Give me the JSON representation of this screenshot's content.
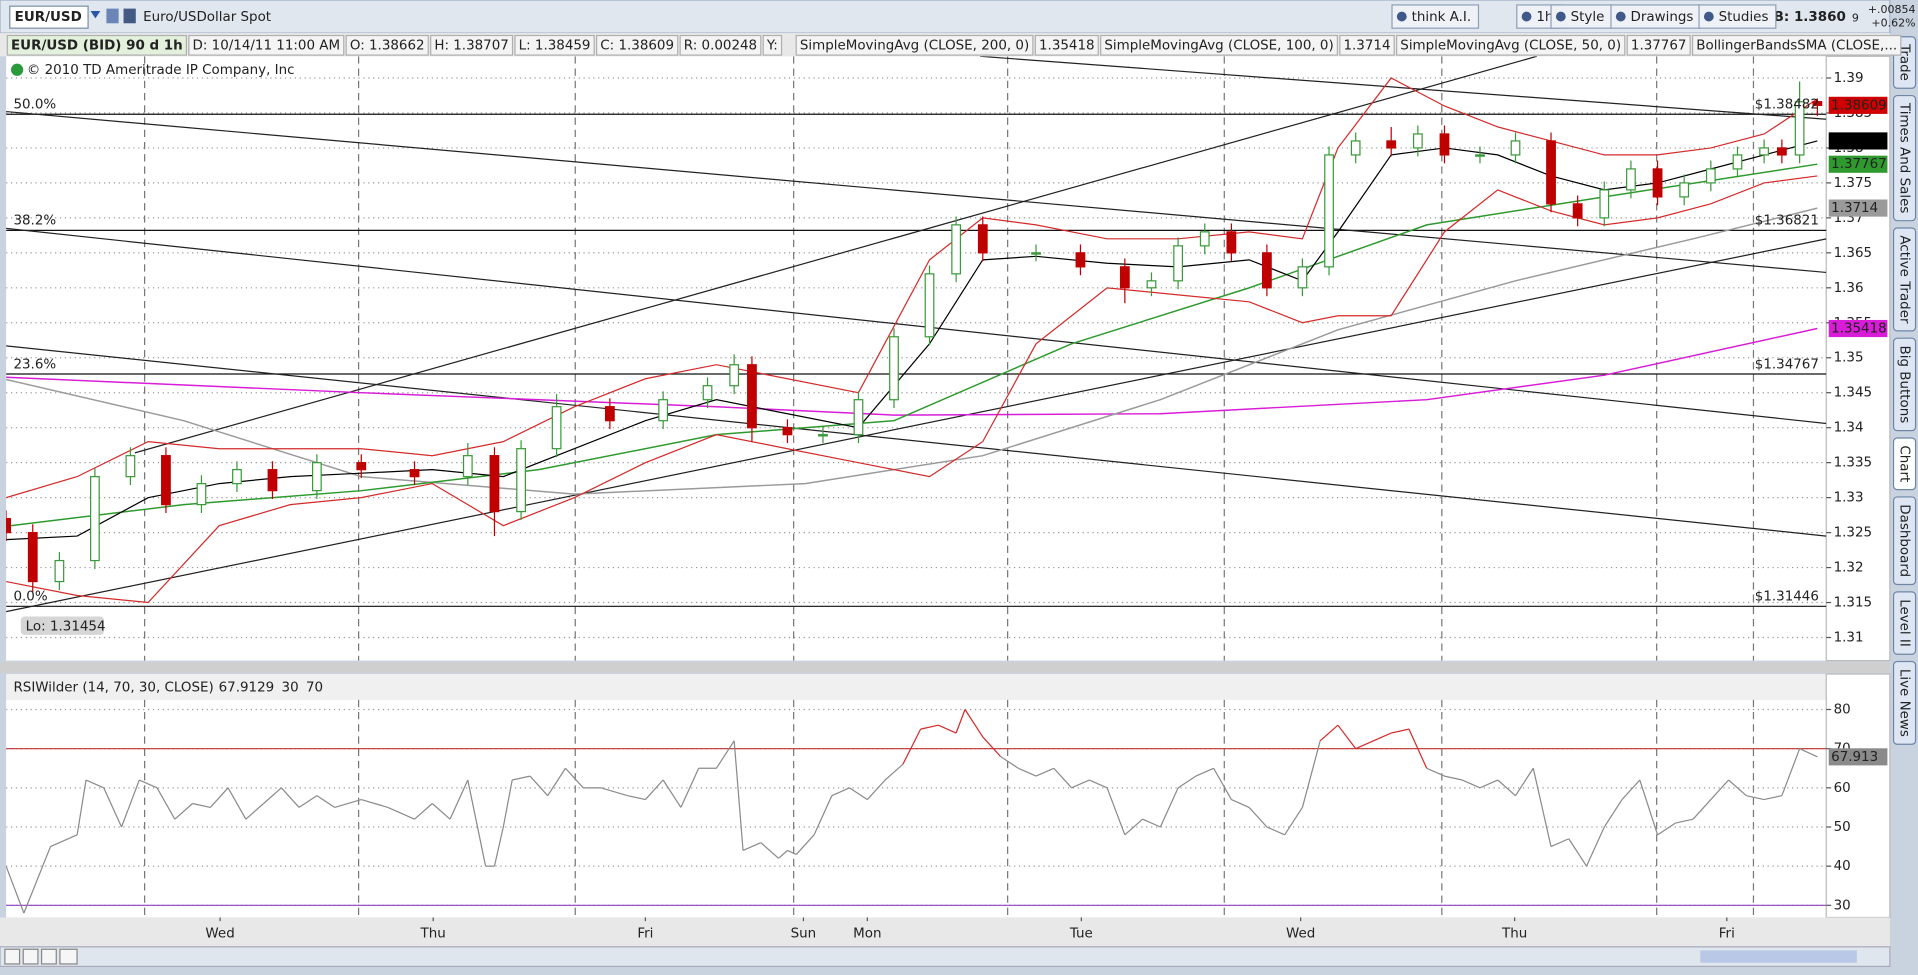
{
  "toolbar": {
    "symbol": "EUR/USD",
    "description": "Euro/USDollar Spot",
    "buttons": [
      "think A.I.",
      "1h",
      "Style",
      "Drawings",
      "Studies"
    ],
    "bid": "B: 1.3860",
    "bid_suffix": "9",
    "change": "+.00854",
    "change_pct": "+0.62%"
  },
  "side_tabs": [
    "Trade",
    "Times And Sales",
    "Active Trader",
    "Big Buttons",
    "Chart",
    "Dashboard",
    "Level II",
    "Live News"
  ],
  "chart_data": [
    {
      "type": "candlestick",
      "info": [
        "EUR/USD (BID) 90 d 1h",
        "D: 10/14/11 11:00 AM",
        "O: 1.38662",
        "H: 1.38707",
        "L: 1.38459",
        "C: 1.38609",
        "R: 0.00248",
        "Y:"
      ],
      "copyright": "© 2010 TD Ameritrade IP Company, Inc",
      "low_label": "Lo: 1.31454",
      "last_price": 1.38609,
      "xlim": [
        0,
        205
      ],
      "ylim": [
        1.3067,
        1.3931
      ],
      "yticks": [
        1.31,
        1.315,
        1.32,
        1.325,
        1.33,
        1.335,
        1.34,
        1.345,
        1.35,
        1.355,
        1.36,
        1.365,
        1.37,
        1.375,
        1.38,
        1.385,
        1.39
      ],
      "xticks": [
        {
          "value": 24.1,
          "label": "Wed"
        },
        {
          "value": 48.1,
          "label": "Thu"
        },
        {
          "value": 72,
          "label": "Fri"
        },
        {
          "value": 89.8,
          "label": "Sun"
        },
        {
          "value": 97,
          "label": "Mon"
        },
        {
          "value": 121.1,
          "label": "Tue"
        },
        {
          "value": 145.8,
          "label": "Wed"
        },
        {
          "value": 169.9,
          "label": "Thu"
        },
        {
          "value": 193.8,
          "label": "Fri"
        }
      ],
      "xgrid": [
        15.6,
        39.7,
        64.1,
        88.7,
        112.8,
        137.2,
        161.7,
        185.9,
        196.8
      ],
      "up_color": "#3a9a3a",
      "down_color": "#c00000",
      "x": [
        0,
        3,
        6,
        10,
        14,
        18,
        22,
        26,
        30,
        35,
        40,
        46,
        52,
        55,
        58,
        62,
        68,
        74,
        79,
        82,
        84,
        88,
        92,
        96,
        100,
        104,
        107,
        110,
        116,
        121,
        126,
        129,
        132,
        135,
        138,
        142,
        146,
        149,
        152,
        156,
        159,
        162,
        166,
        170,
        174,
        177,
        180,
        183,
        186,
        189,
        192,
        195,
        198,
        200,
        202,
        204
      ],
      "open": [
        1.327,
        1.325,
        1.318,
        1.321,
        1.333,
        1.336,
        1.329,
        1.332,
        1.334,
        1.331,
        1.335,
        1.334,
        1.333,
        1.336,
        1.328,
        1.337,
        1.343,
        1.341,
        1.344,
        1.346,
        1.349,
        1.34,
        1.339,
        1.339,
        1.344,
        1.353,
        1.362,
        1.369,
        1.365,
        1.365,
        1.363,
        1.36,
        1.361,
        1.366,
        1.368,
        1.365,
        1.36,
        1.363,
        1.379,
        1.381,
        1.38,
        1.382,
        1.379,
        1.379,
        1.381,
        1.372,
        1.37,
        1.374,
        1.377,
        1.373,
        1.375,
        1.377,
        1.379,
        1.38,
        1.379,
        1.38662
      ],
      "high": [
        1.3282,
        1.3262,
        1.3222,
        1.3342,
        1.3372,
        1.3372,
        1.3332,
        1.3352,
        1.3352,
        1.3362,
        1.3362,
        1.3352,
        1.3378,
        1.3372,
        1.3382,
        1.3448,
        1.3442,
        1.3452,
        1.3472,
        1.3505,
        1.3502,
        1.3412,
        1.3402,
        1.3452,
        1.3542,
        1.3632,
        1.3702,
        1.3702,
        1.3662,
        1.3662,
        1.3642,
        1.3622,
        1.3672,
        1.3692,
        1.3692,
        1.3662,
        1.3642,
        1.3802,
        1.3822,
        1.383,
        1.3832,
        1.3832,
        1.3802,
        1.3822,
        1.3822,
        1.3732,
        1.3752,
        1.3782,
        1.3782,
        1.3762,
        1.3782,
        1.3802,
        1.3812,
        1.3812,
        1.3895,
        1.38707
      ],
      "low": [
        1.3238,
        1.3165,
        1.3168,
        1.3198,
        1.3318,
        1.3278,
        1.3278,
        1.3308,
        1.3298,
        1.3298,
        1.3328,
        1.3318,
        1.3318,
        1.3245,
        1.3268,
        1.3358,
        1.3398,
        1.3398,
        1.3428,
        1.3448,
        1.338,
        1.3378,
        1.3378,
        1.3378,
        1.3428,
        1.3518,
        1.3608,
        1.3638,
        1.3638,
        1.3618,
        1.3578,
        1.3588,
        1.3598,
        1.3648,
        1.3638,
        1.3588,
        1.3588,
        1.3618,
        1.3778,
        1.3788,
        1.3788,
        1.3778,
        1.3778,
        1.3778,
        1.3708,
        1.3688,
        1.3688,
        1.3728,
        1.3718,
        1.3718,
        1.3738,
        1.3758,
        1.3778,
        1.3778,
        1.3778,
        1.38459
      ],
      "close": [
        1.325,
        1.318,
        1.321,
        1.333,
        1.336,
        1.329,
        1.332,
        1.334,
        1.331,
        1.335,
        1.334,
        1.333,
        1.336,
        1.328,
        1.337,
        1.343,
        1.341,
        1.344,
        1.346,
        1.349,
        1.34,
        1.339,
        1.339,
        1.344,
        1.353,
        1.362,
        1.369,
        1.365,
        1.365,
        1.363,
        1.36,
        1.361,
        1.366,
        1.368,
        1.365,
        1.36,
        1.363,
        1.379,
        1.381,
        1.38,
        1.382,
        1.379,
        1.379,
        1.381,
        1.372,
        1.37,
        1.374,
        1.377,
        1.373,
        1.375,
        1.377,
        1.379,
        1.38,
        1.379,
        1.3866,
        1.38609
      ],
      "series": [
        {
          "name": "SimpleMovingAvg (CLOSE, 200, 0)",
          "color": "#d81cd8",
          "last_value": 1.35418,
          "x": [
            0,
            40,
            80,
            100,
            130,
            160,
            180,
            204
          ],
          "values": [
            1.3472,
            1.345,
            1.343,
            1.3418,
            1.342,
            1.344,
            1.3475,
            1.35418
          ]
        },
        {
          "name": "SimpleMovingAvg (CLOSE, 100, 0)",
          "color": "#9a9a9a",
          "last_value": 1.3714,
          "x": [
            0,
            20,
            40,
            64,
            90,
            110,
            130,
            150,
            170,
            190,
            204
          ],
          "values": [
            1.3469,
            1.341,
            1.333,
            1.3305,
            1.332,
            1.336,
            1.344,
            1.354,
            1.361,
            1.367,
            1.3714
          ]
        },
        {
          "name": "SimpleMovingAvg (CLOSE, 50, 0)",
          "color": "#2e9a2e",
          "last_value": 1.37767,
          "x": [
            0,
            20,
            40,
            60,
            80,
            100,
            120,
            140,
            160,
            180,
            204
          ],
          "values": [
            1.3259,
            1.329,
            1.331,
            1.334,
            1.339,
            1.341,
            1.352,
            1.36,
            1.369,
            1.373,
            1.37767
          ]
        }
      ],
      "bands": {
        "name": "BollingerBandsSMA (CLOSE,...",
        "color": "#d42a2a",
        "middle_color": "#000000",
        "x": [
          0,
          8,
          16,
          24,
          32,
          40,
          48,
          56,
          64,
          72,
          80,
          88,
          96,
          104,
          110,
          116,
          124,
          132,
          140,
          146,
          150,
          156,
          162,
          168,
          174,
          180,
          186,
          192,
          198,
          204
        ],
        "upper": [
          1.33,
          1.333,
          1.338,
          1.337,
          1.337,
          1.337,
          1.336,
          1.338,
          1.343,
          1.347,
          1.349,
          1.347,
          1.345,
          1.364,
          1.37,
          1.369,
          1.367,
          1.367,
          1.368,
          1.367,
          1.38,
          1.39,
          1.386,
          1.383,
          1.381,
          1.379,
          1.379,
          1.38,
          1.382,
          1.387
        ],
        "middle": [
          1.324,
          1.3245,
          1.33,
          1.332,
          1.333,
          1.3335,
          1.334,
          1.333,
          1.337,
          1.341,
          1.344,
          1.342,
          1.34,
          1.352,
          1.364,
          1.3645,
          1.3635,
          1.363,
          1.364,
          1.361,
          1.368,
          1.379,
          1.38,
          1.379,
          1.376,
          1.374,
          1.375,
          1.377,
          1.379,
          1.381
        ],
        "lower": [
          1.318,
          1.316,
          1.315,
          1.326,
          1.329,
          1.33,
          1.332,
          1.326,
          1.33,
          1.335,
          1.339,
          1.337,
          1.335,
          1.333,
          1.338,
          1.352,
          1.36,
          1.359,
          1.358,
          1.355,
          1.356,
          1.356,
          1.368,
          1.374,
          1.371,
          1.369,
          1.37,
          1.372,
          1.375,
          1.376
        ]
      },
      "trendlines": [
        {
          "x": [
            0,
            205
          ],
          "y": [
            1.3852,
            1.3622
          ]
        },
        {
          "x": [
            0,
            205
          ],
          "y": [
            1.3685,
            1.3406
          ]
        },
        {
          "x": [
            0,
            205
          ],
          "y": [
            1.3517,
            1.3245
          ]
        },
        {
          "x": [
            14.5,
            172.4
          ],
          "y": [
            1.3364,
            1.3931
          ]
        },
        {
          "x": [
            0,
            205
          ],
          "y": [
            1.3137,
            1.367
          ]
        },
        {
          "x": [
            109.7,
            205
          ],
          "y": [
            1.3931,
            1.3841
          ]
        }
      ],
      "fib_levels": [
        {
          "label": "50.0%",
          "value": 1.38482,
          "price_label": "$1.38482"
        },
        {
          "label": "38.2%",
          "value": 1.36821,
          "price_label": "$1.36821"
        },
        {
          "label": "23.6%",
          "value": 1.34767,
          "price_label": "$1.34767"
        },
        {
          "label": "0.0%",
          "value": 1.31446,
          "price_label": "$1.31446"
        }
      ]
    },
    {
      "type": "line",
      "title": "RSIWilder (14, 70, 30, CLOSE)",
      "last_value": 67.9129,
      "last_tag": 67.913,
      "color": "#8a8a8a",
      "overbought_color": "#d42a2a",
      "levels": [
        {
          "value": 30,
          "color": "#9040c0"
        },
        {
          "value": 70,
          "color": "#c03030"
        }
      ],
      "ylim": [
        26.9,
        82.5
      ],
      "yticks": [
        30,
        40,
        50,
        60,
        70,
        80
      ],
      "x": [
        0,
        2,
        5,
        8,
        9,
        11,
        13,
        15,
        17,
        19,
        21,
        23,
        25,
        27,
        29,
        31,
        33,
        35,
        37,
        40,
        43,
        46,
        48,
        50,
        52,
        54,
        55,
        56,
        57,
        59,
        61,
        63,
        65,
        67,
        70,
        72,
        74,
        76,
        78,
        80,
        82,
        83,
        85,
        87,
        88,
        89,
        91,
        93,
        95,
        97,
        99,
        101,
        103,
        105,
        107,
        108,
        110,
        112,
        114,
        116,
        118,
        120,
        122,
        124,
        126,
        128,
        130,
        132,
        134,
        136,
        138,
        140,
        142,
        144,
        146,
        148,
        150,
        152,
        154,
        156,
        158,
        160,
        162,
        164,
        166,
        168,
        170,
        172,
        174,
        176,
        178,
        180,
        182,
        184,
        186,
        188,
        190,
        192,
        194,
        196,
        198,
        200,
        202,
        204
      ],
      "values": [
        40,
        28,
        45,
        48,
        62,
        60,
        50,
        62,
        60,
        52,
        56,
        55,
        60,
        52,
        56,
        60,
        55,
        58,
        55,
        57,
        55,
        52,
        56,
        52,
        62,
        40,
        40,
        50,
        62,
        63,
        58,
        65,
        60,
        60,
        58,
        57,
        62,
        55,
        65,
        65,
        72,
        44,
        46,
        42,
        44,
        43,
        48,
        58,
        60,
        57,
        62,
        66,
        75,
        76,
        74,
        80,
        73,
        68,
        65,
        63,
        65,
        60,
        62,
        60,
        48,
        52,
        50,
        60,
        63,
        65,
        57,
        55,
        50,
        48,
        55,
        72,
        76,
        70,
        72,
        74,
        75,
        65,
        63,
        62,
        60,
        62,
        58,
        65,
        45,
        47,
        40,
        50,
        57,
        62,
        48,
        51,
        52,
        57,
        62,
        58,
        57,
        58,
        70,
        67.9129
      ]
    }
  ]
}
